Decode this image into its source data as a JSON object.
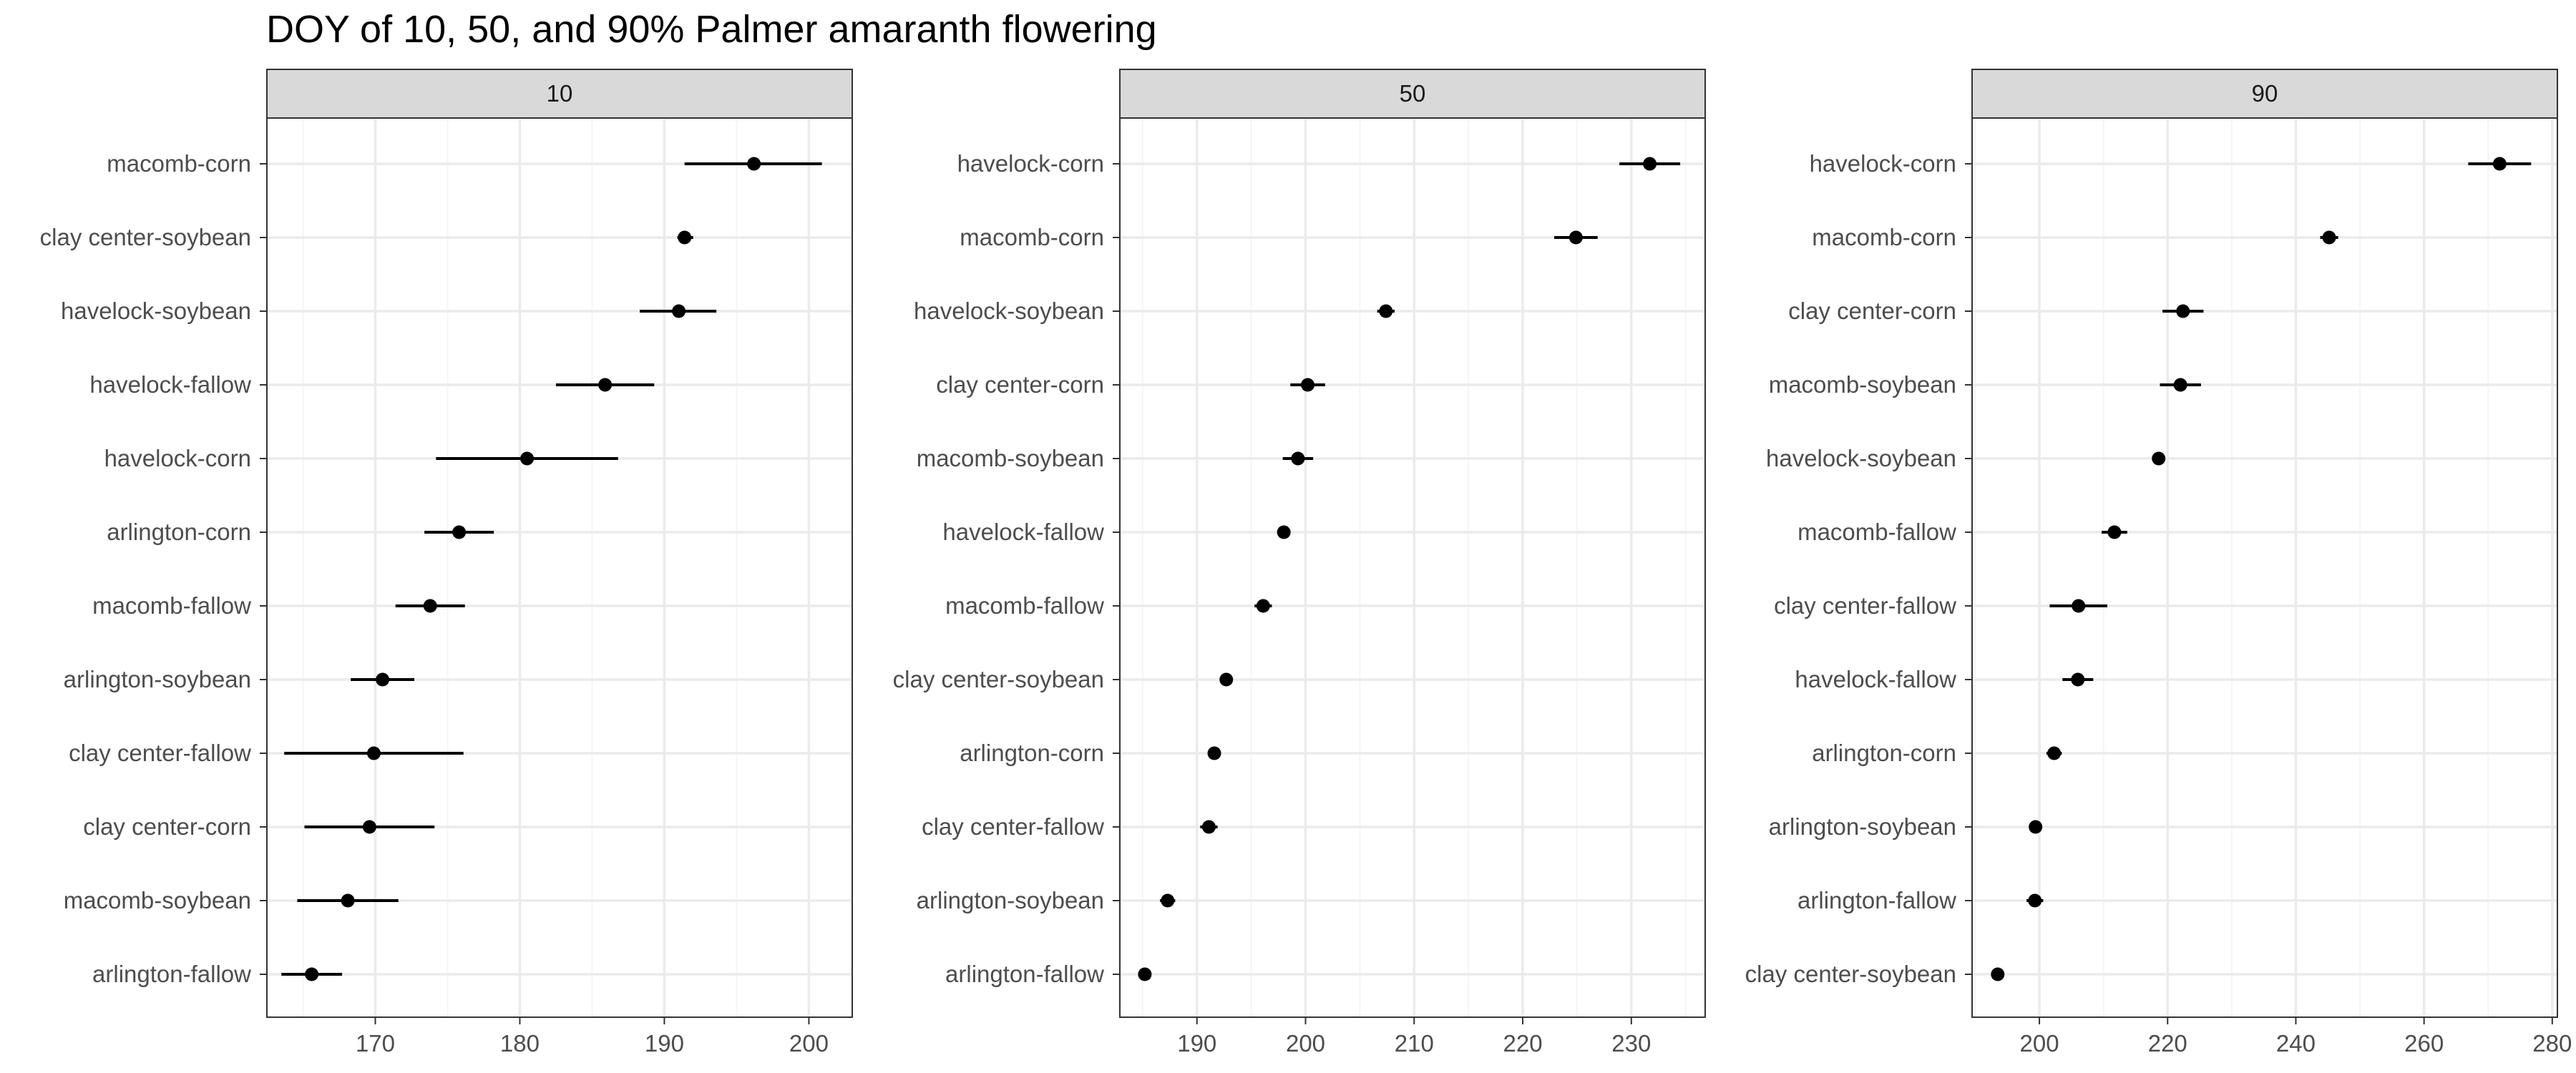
{
  "chart_data": {
    "type": "scatter",
    "title": "DOY of 10, 50, and 90% Palmer amaranth flowering",
    "xlabel": "",
    "ylabel": "",
    "grid": true,
    "legend": "none",
    "colors": {
      "point": "#000000",
      "strip": "#d9d9d9",
      "grid_major": "#ebebeb",
      "grid_minor": "#f5f5f5",
      "border": "#333333",
      "text": "#4d4d4d"
    },
    "panels": [
      {
        "strip": "10",
        "xlim": [
          162.5,
          203
        ],
        "xticks": [
          170,
          180,
          190,
          200
        ],
        "categories": [
          "macomb-corn",
          "clay center-soybean",
          "havelock-soybean",
          "havelock-fallow",
          "havelock-corn",
          "arlington-corn",
          "macomb-fallow",
          "arlington-soybean",
          "clay center-fallow",
          "clay center-corn",
          "macomb-soybean",
          "arlington-fallow"
        ],
        "values": [
          196.2,
          191.4,
          191.0,
          185.9,
          180.5,
          175.8,
          173.8,
          170.5,
          169.9,
          169.6,
          168.1,
          165.6
        ],
        "lower": [
          191.4,
          190.9,
          188.3,
          182.5,
          174.2,
          173.4,
          171.4,
          168.3,
          163.7,
          165.1,
          164.6,
          163.5
        ],
        "upper": [
          200.9,
          192.0,
          193.6,
          189.3,
          186.8,
          178.2,
          176.2,
          172.7,
          176.1,
          174.1,
          171.6,
          167.7
        ]
      },
      {
        "strip": "50",
        "xlim": [
          182.9,
          236.8
        ],
        "xticks": [
          190,
          200,
          210,
          220,
          230
        ],
        "categories": [
          "havelock-corn",
          "macomb-corn",
          "havelock-soybean",
          "clay center-corn",
          "macomb-soybean",
          "havelock-fallow",
          "macomb-fallow",
          "clay center-soybean",
          "arlington-corn",
          "clay center-fallow",
          "arlington-soybean",
          "arlington-fallow"
        ],
        "values": [
          231.7,
          224.9,
          207.4,
          200.2,
          199.3,
          198.0,
          196.1,
          192.7,
          191.6,
          191.1,
          187.3,
          185.2
        ],
        "lower": [
          228.9,
          222.9,
          206.6,
          198.6,
          197.9,
          197.8,
          195.3,
          192.6,
          191.4,
          190.3,
          186.6,
          184.6
        ],
        "upper": [
          234.5,
          226.9,
          208.2,
          201.8,
          200.7,
          198.2,
          196.9,
          192.8,
          191.8,
          191.9,
          188.0,
          185.8
        ]
      },
      {
        "strip": "90",
        "xlim": [
          189.5,
          280.8
        ],
        "xticks": [
          200,
          220,
          240,
          260,
          280
        ],
        "categories": [
          "havelock-corn",
          "macomb-corn",
          "clay center-corn",
          "macomb-soybean",
          "havelock-soybean",
          "macomb-fallow",
          "clay center-fallow",
          "havelock-fallow",
          "arlington-corn",
          "arlington-soybean",
          "arlington-fallow",
          "clay center-soybean"
        ],
        "values": [
          271.8,
          245.2,
          222.4,
          222.0,
          218.6,
          211.7,
          206.1,
          206.0,
          202.3,
          199.4,
          199.3,
          193.5
        ],
        "lower": [
          266.9,
          243.8,
          219.2,
          218.8,
          217.6,
          209.7,
          201.6,
          203.6,
          201.1,
          198.5,
          198.0,
          193.5
        ],
        "upper": [
          276.7,
          246.6,
          225.6,
          225.2,
          219.6,
          213.7,
          210.6,
          208.4,
          203.5,
          200.3,
          200.6,
          193.5
        ]
      }
    ]
  }
}
